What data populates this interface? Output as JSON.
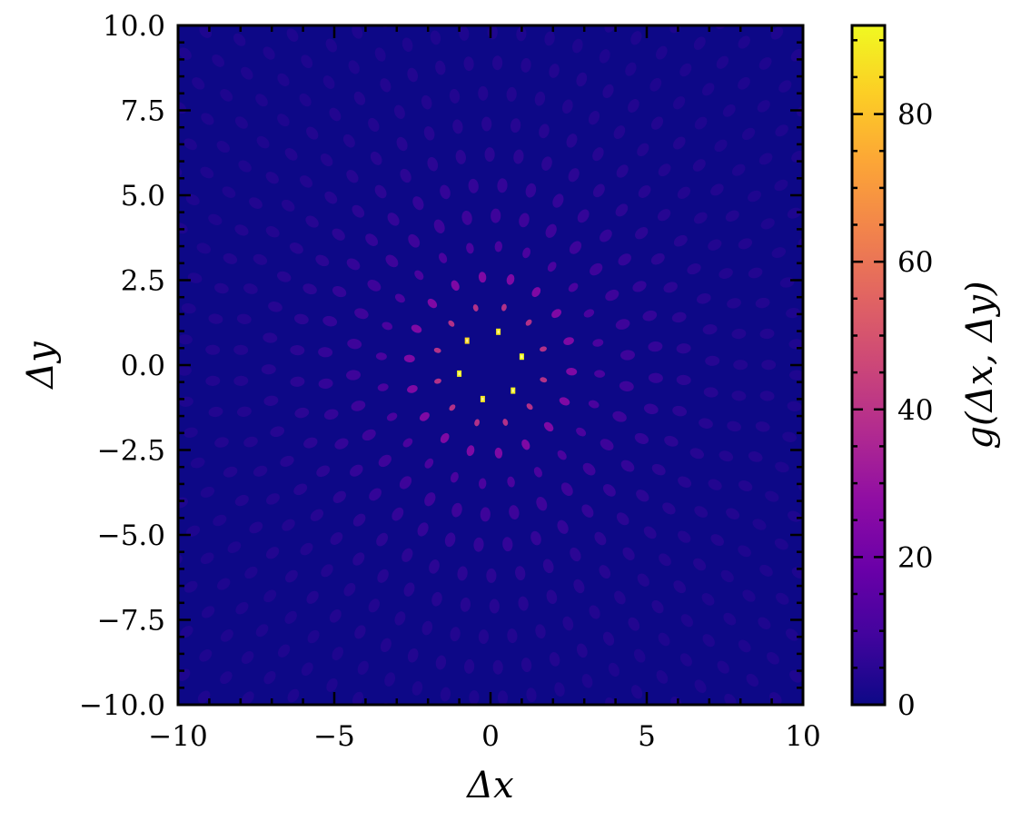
{
  "chart_data": {
    "type": "heatmap",
    "title": "",
    "xlabel": "Δx",
    "ylabel": "Δy",
    "xlim": [
      -10,
      10
    ],
    "ylim": [
      -10,
      10
    ],
    "x_ticks": [
      "−10",
      "−5",
      "0",
      "5",
      "10"
    ],
    "y_ticks": [
      "−10.0",
      "−7.5",
      "−5.0",
      "−2.5",
      "0.0",
      "2.5",
      "5.0",
      "7.5",
      "10.0"
    ],
    "colorbar": {
      "label": "g(Δx, Δy)",
      "range": [
        0,
        92
      ],
      "ticks": [
        "0",
        "20",
        "40",
        "60",
        "80"
      ],
      "colormap": "plasma"
    },
    "background_level": 2,
    "first_shell": {
      "radius": 1.0,
      "peaks": [
        {
          "dx": 0.25,
          "dy": 0.98,
          "g": 88
        },
        {
          "dx": 1.0,
          "dy": 0.25,
          "g": 92
        },
        {
          "dx": 0.72,
          "dy": -0.75,
          "g": 90
        },
        {
          "dx": -0.25,
          "dy": -1.0,
          "g": 88
        },
        {
          "dx": -1.0,
          "dy": -0.25,
          "g": 90
        },
        {
          "dx": -0.75,
          "dy": 0.72,
          "g": 85
        }
      ]
    },
    "outer_shells": [
      {
        "radius": 1.75,
        "level": 40
      },
      {
        "radius": 2.6,
        "level": 25
      },
      {
        "radius": 3.5,
        "level": 16
      },
      {
        "radius": 4.4,
        "level": 12
      },
      {
        "radius": 5.3,
        "level": 9
      },
      {
        "radius": 6.2,
        "level": 7
      },
      {
        "radius": 7.1,
        "level": 6
      },
      {
        "radius": 8.0,
        "level": 5
      },
      {
        "radius": 8.9,
        "level": 5
      },
      {
        "radius": 9.8,
        "level": 4
      },
      {
        "radius": 10.7,
        "level": 4
      },
      {
        "radius": 11.6,
        "level": 4
      },
      {
        "radius": 12.5,
        "level": 4
      },
      {
        "radius": 13.4,
        "level": 4
      }
    ]
  }
}
